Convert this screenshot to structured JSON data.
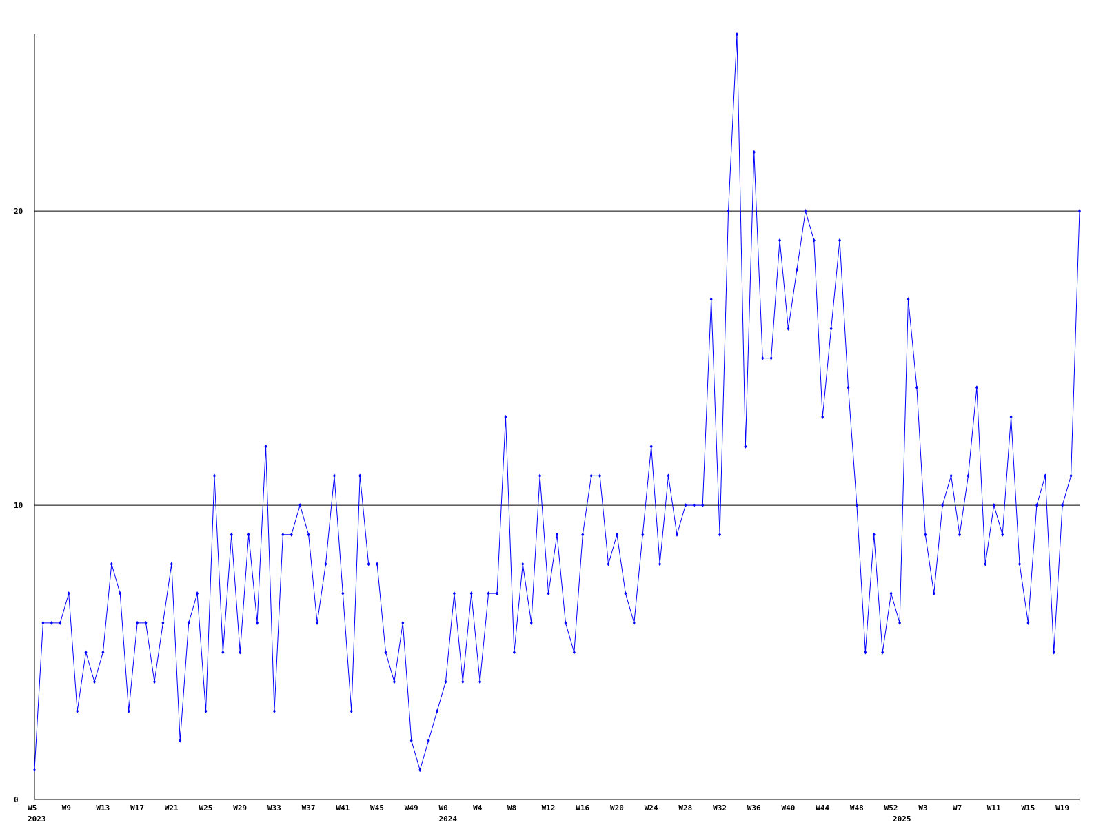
{
  "chart_data": {
    "type": "line",
    "categories": [
      "W5",
      null,
      null,
      null,
      "W9",
      null,
      null,
      null,
      "W13",
      null,
      null,
      null,
      "W17",
      null,
      null,
      null,
      "W21",
      null,
      null,
      null,
      "W25",
      null,
      null,
      null,
      "W29",
      null,
      null,
      null,
      "W33",
      null,
      null,
      null,
      "W37",
      null,
      null,
      null,
      "W41",
      null,
      null,
      null,
      "W45",
      null,
      null,
      null,
      "W49",
      null,
      null,
      null,
      "W0",
      null,
      null,
      null,
      "W4",
      null,
      null,
      null,
      "W8",
      null,
      null,
      null,
      "W12",
      null,
      null,
      null,
      "W16",
      null,
      null,
      null,
      "W20",
      null,
      null,
      null,
      "W24",
      null,
      null,
      null,
      "W28",
      null,
      null,
      null,
      "W32",
      null,
      null,
      null,
      "W36",
      null,
      null,
      null,
      "W40",
      null,
      null,
      null,
      "W44",
      null,
      null,
      null,
      "W48",
      null,
      null,
      null,
      "W52",
      null,
      null,
      null,
      "W3",
      null,
      null,
      null,
      "W7",
      null,
      null,
      null,
      "W11",
      null,
      null,
      null,
      "W15",
      null,
      null,
      null,
      "W19",
      null,
      null
    ],
    "years": [
      "2023",
      null,
      null,
      null,
      null,
      null,
      null,
      null,
      null,
      null,
      null,
      null,
      null,
      null,
      null,
      null,
      null,
      null,
      null,
      null,
      null,
      null,
      null,
      null,
      null,
      null,
      null,
      null,
      null,
      null,
      null,
      null,
      null,
      null,
      null,
      null,
      null,
      null,
      null,
      null,
      null,
      null,
      null,
      null,
      null,
      null,
      null,
      null,
      "2024",
      null,
      null,
      null,
      null,
      null,
      null,
      null,
      null,
      null,
      null,
      null,
      null,
      null,
      null,
      null,
      null,
      null,
      null,
      null,
      null,
      null,
      null,
      null,
      null,
      null,
      null,
      null,
      null,
      null,
      null,
      null,
      null,
      null,
      null,
      null,
      null,
      null,
      null,
      null,
      null,
      null,
      null,
      null,
      null,
      null,
      null,
      null,
      null,
      null,
      null,
      null,
      null,
      "2025",
      null,
      null,
      null,
      null,
      null,
      null,
      null,
      null,
      null,
      null,
      null,
      null,
      null,
      null,
      null,
      null,
      null,
      null,
      null,
      null,
      null
    ],
    "values": [
      1,
      6,
      6,
      6,
      7,
      3,
      5,
      4,
      5,
      8,
      7,
      3,
      6,
      6,
      4,
      6,
      8,
      2,
      6,
      7,
      3,
      11,
      5,
      9,
      5,
      9,
      6,
      12,
      3,
      9,
      9,
      10,
      9,
      6,
      8,
      11,
      7,
      3,
      11,
      8,
      8,
      5,
      4,
      6,
      2,
      1,
      2,
      3,
      4,
      7,
      4,
      7,
      4,
      7,
      7,
      13,
      5,
      8,
      6,
      11,
      7,
      9,
      6,
      5,
      9,
      11,
      11,
      8,
      9,
      7,
      6,
      9,
      12,
      8,
      11,
      9,
      10,
      10,
      10,
      17,
      9,
      20,
      26,
      12,
      22,
      15,
      15,
      19,
      16,
      18,
      20,
      19,
      13,
      16,
      19,
      14,
      10,
      5,
      9,
      5,
      7,
      6,
      17,
      14,
      9,
      7,
      10,
      11,
      9,
      11,
      14,
      8,
      10,
      9,
      13,
      8,
      6,
      10,
      11,
      5,
      10,
      11,
      20
    ],
    "color": "#0000ff",
    "ylim": [
      0,
      26
    ],
    "yticks": [
      0,
      10,
      20
    ],
    "grid": true
  }
}
